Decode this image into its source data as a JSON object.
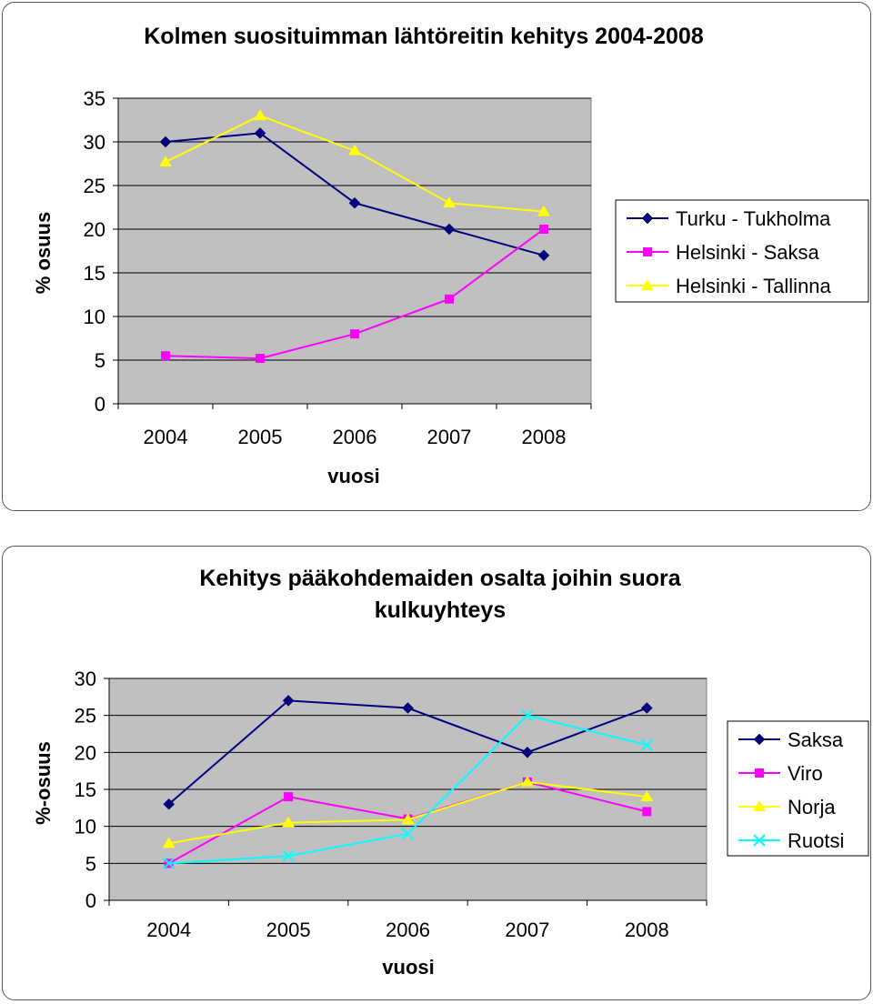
{
  "chart_data": [
    {
      "type": "line",
      "title": "Kolmen suosituimman lähtöreitin kehitys 2004-2008",
      "xlabel": "vuosi",
      "ylabel": "% osuus",
      "categories": [
        "2004",
        "2005",
        "2006",
        "2007",
        "2008"
      ],
      "ylim": [
        0,
        35
      ],
      "yticks": [
        0,
        5,
        10,
        15,
        20,
        25,
        30,
        35
      ],
      "grid": true,
      "legend_position": "right",
      "series": [
        {
          "name": "Turku - Tukholma",
          "values": [
            30,
            31,
            23,
            20,
            17
          ],
          "color": "#000080",
          "marker": "diamond"
        },
        {
          "name": "Helsinki - Saksa",
          "values": [
            5.5,
            5.2,
            8,
            12,
            20
          ],
          "color": "#ff00ff",
          "marker": "square"
        },
        {
          "name": "Helsinki - Tallinna",
          "values": [
            27.7,
            33,
            29,
            23,
            22
          ],
          "color": "#ffff00",
          "marker": "triangle"
        }
      ]
    },
    {
      "type": "line",
      "title": "Kehitys pääkohdemaiden osalta joihin suora kulkuyhteys",
      "title_lines": [
        "Kehitys pääkohdemaiden osalta joihin suora",
        "kulkuyhteys"
      ],
      "xlabel": "vuosi",
      "ylabel": "%-osuus",
      "categories": [
        "2004",
        "2005",
        "2006",
        "2007",
        "2008"
      ],
      "ylim": [
        0,
        30
      ],
      "yticks": [
        0,
        5,
        10,
        15,
        20,
        25,
        30
      ],
      "grid": true,
      "legend_position": "right",
      "series": [
        {
          "name": "Saksa",
          "values": [
            13,
            27,
            26,
            20,
            26
          ],
          "color": "#000080",
          "marker": "diamond"
        },
        {
          "name": "Viro",
          "values": [
            5,
            14,
            11,
            16,
            12
          ],
          "color": "#ff00ff",
          "marker": "square"
        },
        {
          "name": "Norja",
          "values": [
            7.7,
            10.5,
            10.9,
            16,
            14
          ],
          "color": "#ffff00",
          "marker": "triangle"
        },
        {
          "name": "Ruotsi",
          "values": [
            5,
            6,
            9,
            25,
            21
          ],
          "color": "#00ffff",
          "marker": "x"
        }
      ]
    }
  ]
}
